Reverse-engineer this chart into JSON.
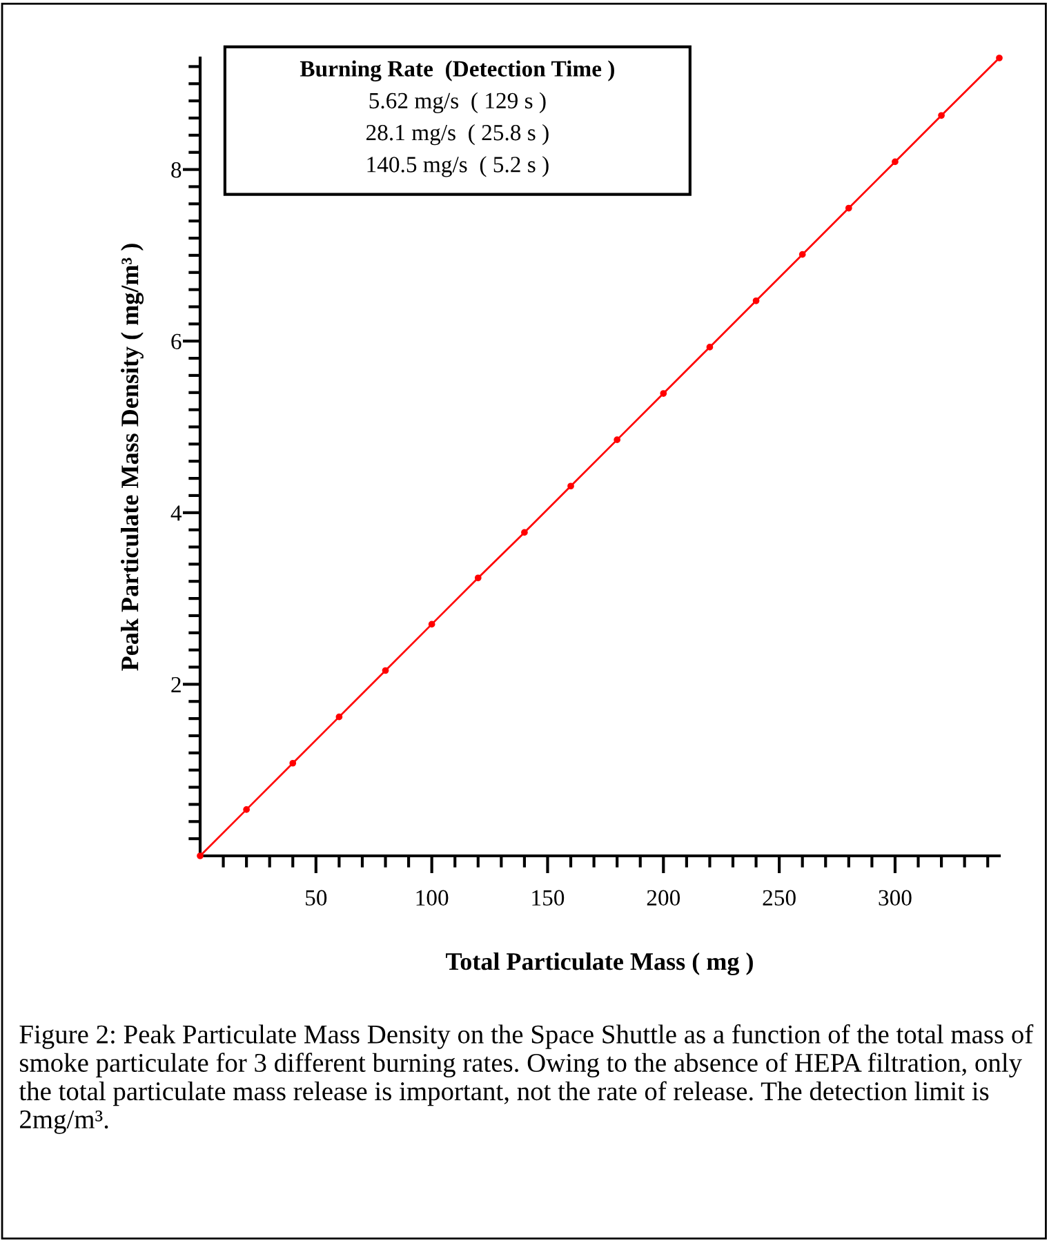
{
  "chart_data": {
    "type": "line",
    "xlabel": "Total Particulate Mass ( mg )",
    "ylabel": "Peak Particulate Mass Density ( mg/m³ )",
    "x": [
      0,
      20,
      40,
      60,
      80,
      100,
      120,
      140,
      160,
      180,
      200,
      220,
      240,
      260,
      280,
      300,
      320,
      345
    ],
    "series": [
      {
        "color": "#ff0000",
        "values": [
          0,
          0.54,
          1.08,
          1.62,
          2.16,
          2.7,
          3.24,
          3.77,
          4.31,
          4.85,
          5.39,
          5.93,
          6.47,
          7.01,
          7.55,
          8.09,
          8.63,
          9.3
        ]
      }
    ],
    "xlim": [
      0,
      345
    ],
    "ylim": [
      0,
      9.3
    ],
    "xticks": [
      {
        "value": 10,
        "label": null
      },
      {
        "value": 20,
        "label": null
      },
      {
        "value": 30,
        "label": null
      },
      {
        "value": 40,
        "label": null
      },
      50,
      {
        "value": 60,
        "label": null
      },
      {
        "value": 70,
        "label": null
      },
      {
        "value": 80,
        "label": null
      },
      {
        "value": 90,
        "label": null
      },
      100,
      {
        "value": 110,
        "label": null
      },
      {
        "value": 120,
        "label": null
      },
      {
        "value": 130,
        "label": null
      },
      {
        "value": 140,
        "label": null
      },
      150,
      {
        "value": 160,
        "label": null
      },
      {
        "value": 170,
        "label": null
      },
      {
        "value": 180,
        "label": null
      },
      {
        "value": 190,
        "label": null
      },
      200,
      {
        "value": 210,
        "label": null
      },
      {
        "value": 220,
        "label": null
      },
      {
        "value": 230,
        "label": null
      },
      {
        "value": 240,
        "label": null
      },
      250,
      {
        "value": 260,
        "label": null
      },
      {
        "value": 270,
        "label": null
      },
      {
        "value": 280,
        "label": null
      },
      {
        "value": 290,
        "label": null
      },
      300,
      {
        "value": 310,
        "label": null
      },
      {
        "value": 320,
        "label": null
      },
      {
        "value": 330,
        "label": null
      },
      {
        "value": 340,
        "label": null
      }
    ],
    "yticks": [
      {
        "value": 0.2,
        "label": null
      },
      {
        "value": 0.4,
        "label": null
      },
      {
        "value": 0.6,
        "label": null
      },
      {
        "value": 0.8,
        "label": null
      },
      {
        "value": 1,
        "label": null
      },
      {
        "value": 1.2,
        "label": null
      },
      {
        "value": 1.4,
        "label": null
      },
      {
        "value": 1.6,
        "label": null
      },
      {
        "value": 1.8,
        "label": null
      },
      2,
      {
        "value": 2.2,
        "label": null
      },
      {
        "value": 2.4,
        "label": null
      },
      {
        "value": 2.6,
        "label": null
      },
      {
        "value": 2.8,
        "label": null
      },
      {
        "value": 3,
        "label": null
      },
      {
        "value": 3.2,
        "label": null
      },
      {
        "value": 3.4,
        "label": null
      },
      {
        "value": 3.6,
        "label": null
      },
      {
        "value": 3.8,
        "label": null
      },
      4,
      {
        "value": 4.2,
        "label": null
      },
      {
        "value": 4.4,
        "label": null
      },
      {
        "value": 4.6,
        "label": null
      },
      {
        "value": 4.8,
        "label": null
      },
      {
        "value": 5,
        "label": null
      },
      {
        "value": 5.2,
        "label": null
      },
      {
        "value": 5.4,
        "label": null
      },
      {
        "value": 5.6,
        "label": null
      },
      {
        "value": 5.8,
        "label": null
      },
      6,
      {
        "value": 6.2,
        "label": null
      },
      {
        "value": 6.4,
        "label": null
      },
      {
        "value": 6.6,
        "label": null
      },
      {
        "value": 6.8,
        "label": null
      },
      {
        "value": 7,
        "label": null
      },
      {
        "value": 7.2,
        "label": null
      },
      {
        "value": 7.4,
        "label": null
      },
      {
        "value": 7.6,
        "label": null
      },
      {
        "value": 7.8,
        "label": null
      },
      8,
      {
        "value": 8.2,
        "label": null
      },
      {
        "value": 8.4,
        "label": null
      },
      {
        "value": 8.6,
        "label": null
      },
      {
        "value": 8.8,
        "label": null
      },
      {
        "value": 9,
        "label": null
      },
      {
        "value": 9.2,
        "label": null
      }
    ],
    "marker": "circle",
    "grid": false,
    "legend": false,
    "annotations": [
      "Burning Rate  (Detection Time )",
      "5.62 mg/s  ( 129 s )",
      "28.1 mg/s  ( 25.8 s )",
      "140.5 mg/s  ( 5.2 s )",
      "Figure 2: Peak Particulate Mass Density on the Space Shuttle as a function of the total mass of smoke particulate for 3 different burning rates. Owing to the absence of HEPA filtration, only the total particulate mass release is important, not the rate of release. The detection limit is 2mg/m³."
    ]
  }
}
